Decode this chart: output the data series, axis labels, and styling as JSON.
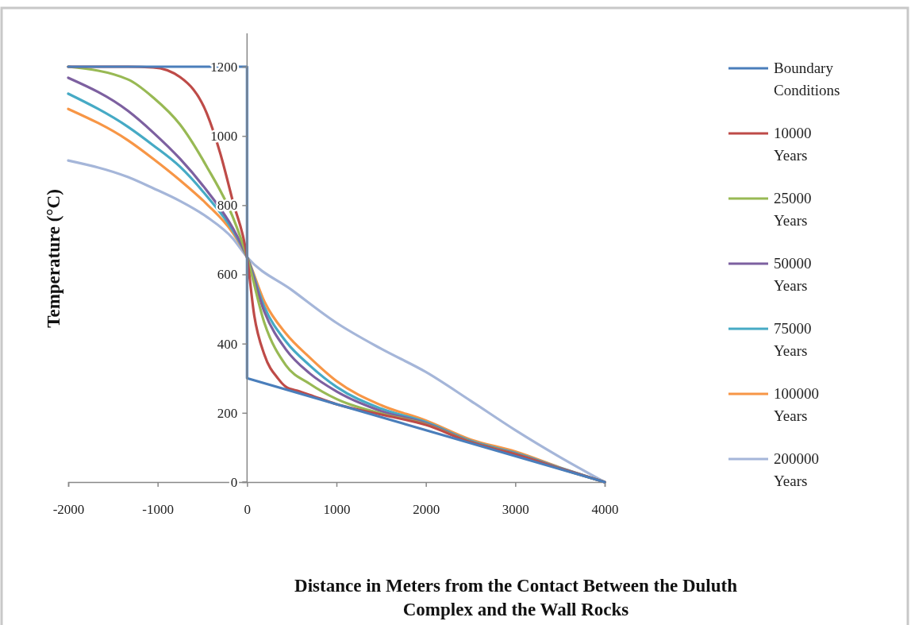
{
  "chart_data": {
    "type": "line",
    "xlabel": "Distance in Meters from the Contact Between the Duluth Complex and the Wall Rocks",
    "ylabel": "Temperature (°C)",
    "xlim": [
      -2000,
      4000
    ],
    "ylim": [
      0,
      1200
    ],
    "xticks": [
      -2000,
      -1000,
      0,
      1000,
      2000,
      3000,
      4000
    ],
    "yticks": [
      0,
      200,
      400,
      600,
      800,
      1000,
      1200
    ],
    "grid": false,
    "legend": "right",
    "marker": "none",
    "line_style": "solid",
    "series": [
      {
        "name": "Boundary Conditions",
        "color": "#4a7ebb",
        "x": [
          -2000,
          0,
          0,
          4000
        ],
        "values": [
          1200,
          1200,
          300,
          0
        ]
      },
      {
        "name": "10000 Years",
        "color": "#be4b48",
        "x": [
          -2000,
          -1330,
          -1050,
          -750,
          -450,
          -300,
          -160,
          0,
          80,
          195,
          350,
          435,
          585,
          700,
          1000,
          1500,
          2000,
          2500,
          3000,
          3500,
          4000
        ],
        "values": [
          1200,
          1200,
          1198,
          1170,
          1065,
          950,
          812,
          650,
          482,
          367,
          298,
          275,
          262,
          252,
          225,
          195,
          165,
          115,
          80,
          39,
          0
        ]
      },
      {
        "name": "25000 Years",
        "color": "#98b954",
        "x": [
          -2000,
          -1330,
          -1050,
          -750,
          -450,
          -160,
          0,
          195,
          435,
          700,
          1000,
          1500,
          2000,
          2500,
          3000,
          3500,
          4000
        ],
        "values": [
          1200,
          1163,
          1111,
          1033,
          911,
          766,
          650,
          459,
          337,
          284,
          240,
          198,
          167,
          116,
          81,
          39,
          0
        ]
      },
      {
        "name": "50000 Years",
        "color": "#7d60a0",
        "x": [
          -2000,
          -1330,
          -1050,
          -750,
          -450,
          -160,
          0,
          195,
          435,
          700,
          1000,
          1500,
          2000,
          2500,
          3000,
          3500,
          4000
        ],
        "values": [
          1168,
          1072,
          1010,
          934,
          842,
          734,
          650,
          491,
          383,
          314,
          262,
          205,
          170,
          117,
          82,
          40,
          0
        ]
      },
      {
        "name": "75000 Years",
        "color": "#46aac5",
        "x": [
          -2000,
          -1330,
          -1050,
          -750,
          -450,
          -160,
          0,
          195,
          435,
          700,
          1000,
          1500,
          2000,
          2500,
          3000,
          3500,
          4000
        ],
        "values": [
          1122,
          1026,
          973,
          911,
          826,
          727,
          650,
          505,
          406,
          337,
          275,
          212,
          173,
          119,
          84,
          41,
          0
        ]
      },
      {
        "name": "100000 Years",
        "color": "#f79646",
        "x": [
          -2000,
          -1330,
          -1050,
          -750,
          -450,
          -160,
          0,
          195,
          435,
          700,
          1000,
          1500,
          2000,
          2500,
          3000,
          3500,
          4000
        ],
        "values": [
          1078,
          987,
          934,
          872,
          803,
          720,
          650,
          521,
          429,
          360,
          292,
          222,
          178,
          123,
          88,
          42,
          0
        ]
      },
      {
        "name": "200000 Years",
        "color": "#a5b6d9",
        "x": [
          -2000,
          -1330,
          -1050,
          -750,
          -450,
          -160,
          0,
          500,
          1000,
          1500,
          2000,
          2500,
          3000,
          3500,
          4000
        ],
        "values": [
          929,
          881,
          849,
          812,
          766,
          704,
          650,
          555,
          460,
          385,
          318,
          235,
          150,
          72,
          0
        ]
      }
    ]
  }
}
